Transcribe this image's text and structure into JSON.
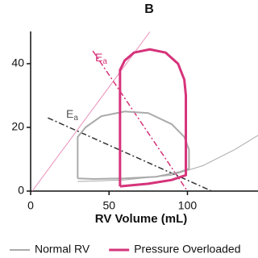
{
  "chart_data": {
    "type": "line",
    "title": "B",
    "xlabel": "RV Volume (mL)",
    "xlim": [
      0,
      145
    ],
    "ylim": [
      0,
      50
    ],
    "xticks": [
      0,
      50,
      100
    ],
    "yticks": [
      0,
      20,
      40
    ],
    "series": [
      {
        "color": "#e88fb8",
        "width": 1,
        "x": [
          1,
          76
        ],
        "values": [
          0,
          50
        ]
      },
      {
        "color": "#aaaaaa",
        "width": 1,
        "x": [
          30,
          60,
          90,
          110,
          130,
          145
        ],
        "values": [
          3,
          3.5,
          5,
          8,
          13,
          17.5
        ]
      },
      {
        "color": "#d6337a",
        "width": 1.5,
        "dash": "dashdot",
        "x": [
          39.7,
          100
        ],
        "values": [
          44,
          0
        ]
      },
      {
        "color": "#333333",
        "width": 1.5,
        "dash": "dashdot",
        "x": [
          11,
          115.5
        ],
        "values": [
          23,
          0
        ]
      },
      {
        "name": "Normal RV",
        "color": "#aaaaaa",
        "width": 2,
        "x": [
          30,
          30,
          35,
          45,
          60,
          75,
          90,
          98,
          101,
          101,
          95,
          80,
          60,
          40,
          30
        ],
        "values": [
          4,
          17,
          20,
          23.5,
          25,
          24.5,
          21,
          17,
          13,
          7,
          6,
          4.5,
          4,
          3.8,
          4
        ]
      },
      {
        "name": "Pressure Overloaded",
        "color": "#d6337a",
        "width": 3,
        "x": [
          57,
          57,
          60,
          66,
          76,
          86,
          94,
          98,
          99,
          99,
          90,
          75,
          57
        ],
        "values": [
          1.5,
          38,
          41,
          43.5,
          44.5,
          43.5,
          40,
          35,
          30,
          5,
          3.5,
          2.3,
          1.5
        ]
      }
    ],
    "annotations": [
      {
        "text": "E",
        "subscript": "a",
        "color": "#d6337a"
      },
      {
        "text": "E",
        "subscript": "a",
        "color": "#555555"
      }
    ]
  }
}
